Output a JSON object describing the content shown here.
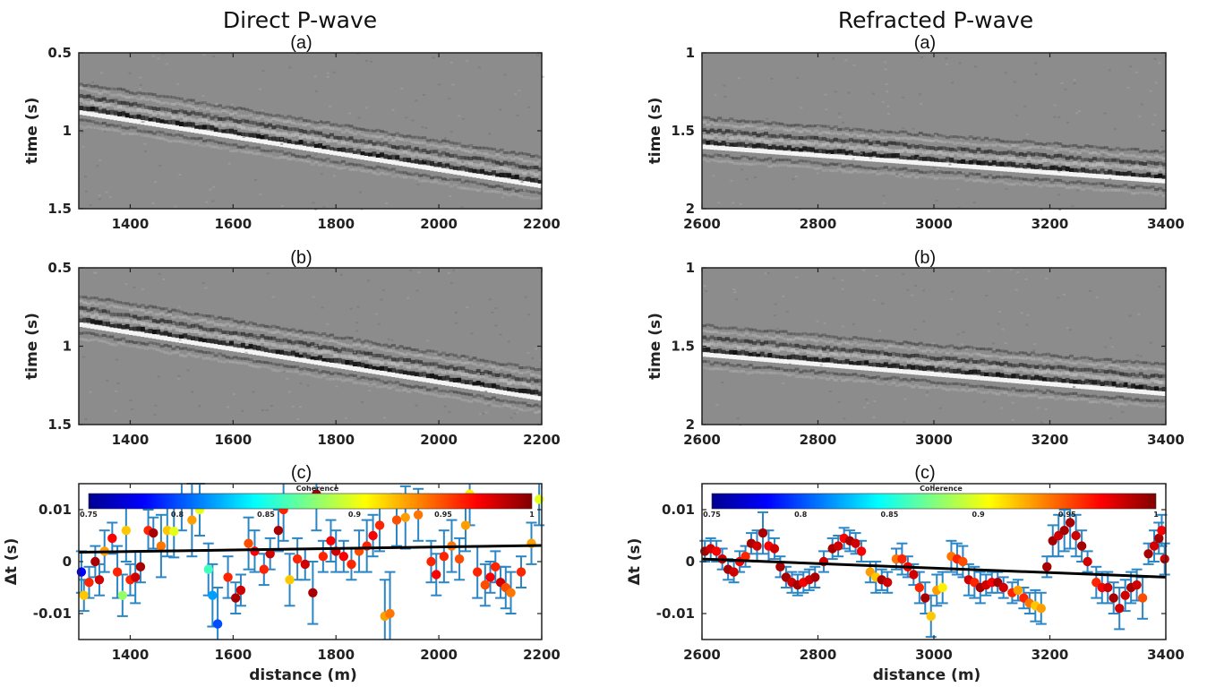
{
  "figure": {
    "left_title": "Direct P-wave",
    "right_title": "Refracted P-wave",
    "panel_labels": [
      "(a)",
      "(b)",
      "(c)"
    ]
  },
  "chart_data": [
    {
      "id": "direct_a",
      "type": "heatmap",
      "panel": "(a)",
      "ylabel": "time (s)",
      "xlim": [
        1300,
        2200
      ],
      "ylim": [
        1.5,
        0.5
      ],
      "y_inverted": true,
      "xticks": [
        "1400",
        "1600",
        "1800",
        "2000",
        "2200"
      ],
      "yticks": [
        "0.5",
        "1",
        "1.5"
      ],
      "colormap": "gray",
      "event": {
        "time_at_xmin": 0.88,
        "time_at_xmax": 1.35
      }
    },
    {
      "id": "direct_b",
      "type": "heatmap",
      "panel": "(b)",
      "ylabel": "time (s)",
      "xlim": [
        1300,
        2200
      ],
      "ylim": [
        1.5,
        0.5
      ],
      "y_inverted": true,
      "xticks": [
        "1400",
        "1600",
        "1800",
        "2000",
        "2200"
      ],
      "yticks": [
        "0.5",
        "1",
        "1.5"
      ],
      "colormap": "gray",
      "event": {
        "time_at_xmin": 0.86,
        "time_at_xmax": 1.33
      }
    },
    {
      "id": "direct_c",
      "type": "scatter",
      "panel": "(c)",
      "xlabel": "distance (m)",
      "ylabel": "Δt (s)",
      "xlim": [
        1300,
        2200
      ],
      "ylim": [
        -0.015,
        0.015
      ],
      "xticks": [
        "1400",
        "1600",
        "1800",
        "2000",
        "2200"
      ],
      "yticks": [
        "0.01",
        "0",
        "-0.01"
      ],
      "colorbar": {
        "title": "Coherence",
        "range": [
          0.75,
          1
        ],
        "ticks": [
          "0.75",
          "0.8",
          "0.85",
          "0.9",
          "0.95",
          "1"
        ],
        "colormap": "jet"
      },
      "trend_line": {
        "x": [
          1300,
          2200
        ],
        "y": [
          0.0018,
          0.0031
        ]
      },
      "points": [
        [
          1305,
          -0.002,
          0.78,
          0.004
        ],
        [
          1310,
          -0.0065,
          0.92,
          0.003
        ],
        [
          1320,
          -0.004,
          0.96,
          0.003
        ],
        [
          1332,
          0.0,
          0.99,
          0.003
        ],
        [
          1340,
          -0.0035,
          0.98,
          0.003
        ],
        [
          1350,
          0.002,
          0.93,
          0.004
        ],
        [
          1365,
          0.0045,
          0.97,
          0.003
        ],
        [
          1375,
          -0.002,
          0.96,
          0.005
        ],
        [
          1385,
          -0.0065,
          0.88,
          0.004
        ],
        [
          1392,
          0.006,
          0.92,
          0.006
        ],
        [
          1400,
          -0.0035,
          0.96,
          0.003
        ],
        [
          1410,
          -0.003,
          0.98,
          0.005
        ],
        [
          1420,
          -0.001,
          0.99,
          0.003
        ],
        [
          1435,
          0.006,
          0.96,
          0.004
        ],
        [
          1445,
          0.0055,
          0.99,
          0.003
        ],
        [
          1460,
          0.003,
          0.94,
          0.006
        ],
        [
          1472,
          0.006,
          0.92,
          0.005
        ],
        [
          1485,
          0.0058,
          0.9,
          0.005
        ],
        [
          1500,
          0.012,
          0.92,
          0.006
        ],
        [
          1520,
          0.008,
          0.93,
          0.007
        ],
        [
          1535,
          0.01,
          0.9,
          0.005
        ],
        [
          1552,
          -0.0015,
          0.86,
          0.005
        ],
        [
          1560,
          -0.0065,
          0.82,
          0.006
        ],
        [
          1570,
          -0.012,
          0.8,
          0.007
        ],
        [
          1590,
          -0.003,
          0.96,
          0.004
        ],
        [
          1605,
          -0.007,
          0.99,
          0.003
        ],
        [
          1615,
          -0.0055,
          0.98,
          0.003
        ],
        [
          1630,
          0.0035,
          0.95,
          0.005
        ],
        [
          1642,
          0.002,
          0.97,
          0.004
        ],
        [
          1660,
          -0.0015,
          0.96,
          0.003
        ],
        [
          1672,
          0.0015,
          0.98,
          0.003
        ],
        [
          1688,
          0.006,
          0.99,
          0.004
        ],
        [
          1698,
          0.01,
          0.96,
          0.006
        ],
        [
          1710,
          -0.0035,
          0.92,
          0.005
        ],
        [
          1725,
          0.0005,
          0.96,
          0.004
        ],
        [
          1740,
          -0.0005,
          0.98,
          0.003
        ],
        [
          1755,
          -0.006,
          0.99,
          0.006
        ],
        [
          1762,
          0.013,
          0.99,
          0.007
        ],
        [
          1775,
          0.001,
          0.96,
          0.003
        ],
        [
          1790,
          0.004,
          0.97,
          0.004
        ],
        [
          1800,
          0.002,
          0.98,
          0.004
        ],
        [
          1815,
          0.001,
          0.97,
          0.003
        ],
        [
          1830,
          -0.0005,
          0.96,
          0.003
        ],
        [
          1845,
          0.002,
          0.95,
          0.004
        ],
        [
          1860,
          0.003,
          0.96,
          0.005
        ],
        [
          1872,
          0.005,
          0.97,
          0.004
        ],
        [
          1885,
          0.007,
          0.96,
          0.005
        ],
        [
          1895,
          -0.0105,
          0.93,
          0.007
        ],
        [
          1905,
          -0.01,
          0.94,
          0.008
        ],
        [
          1918,
          0.008,
          0.95,
          0.005
        ],
        [
          1935,
          0.0085,
          0.93,
          0.006
        ],
        [
          1960,
          0.009,
          0.94,
          0.005
        ],
        [
          1985,
          0.0,
          0.96,
          0.004
        ],
        [
          1995,
          -0.0025,
          0.97,
          0.004
        ],
        [
          2010,
          0.001,
          0.96,
          0.005
        ],
        [
          2025,
          0.003,
          0.94,
          0.005
        ],
        [
          2040,
          0.0005,
          0.95,
          0.004
        ],
        [
          2052,
          0.007,
          0.93,
          0.005
        ],
        [
          2060,
          0.013,
          0.91,
          0.006
        ],
        [
          2075,
          -0.002,
          0.96,
          0.005
        ],
        [
          2090,
          -0.0045,
          0.95,
          0.004
        ],
        [
          2100,
          -0.003,
          0.97,
          0.003
        ],
        [
          2110,
          -0.001,
          0.96,
          0.003
        ],
        [
          2120,
          -0.004,
          0.98,
          0.003
        ],
        [
          2130,
          -0.005,
          0.95,
          0.004
        ],
        [
          2140,
          -0.006,
          0.94,
          0.004
        ],
        [
          2160,
          -0.002,
          0.96,
          0.003
        ],
        [
          2180,
          0.0035,
          0.93,
          0.004
        ],
        [
          2195,
          0.012,
          0.9,
          0.005
        ]
      ]
    },
    {
      "id": "refracted_a",
      "type": "heatmap",
      "panel": "(a)",
      "ylabel": "time (s)",
      "xlim": [
        2600,
        3400
      ],
      "ylim": [
        2,
        1
      ],
      "y_inverted": true,
      "xticks": [
        "2600",
        "2800",
        "3000",
        "3200",
        "3400"
      ],
      "yticks": [
        "1",
        "1.5",
        "2"
      ],
      "colormap": "gray",
      "event": {
        "time_at_xmin": 1.6,
        "time_at_xmax": 1.82
      }
    },
    {
      "id": "refracted_b",
      "type": "heatmap",
      "panel": "(b)",
      "ylabel": "time (s)",
      "xlim": [
        2600,
        3400
      ],
      "ylim": [
        2,
        1
      ],
      "y_inverted": true,
      "xticks": [
        "2600",
        "2800",
        "3000",
        "3200",
        "3400"
      ],
      "yticks": [
        "1",
        "1.5",
        "2"
      ],
      "colormap": "gray",
      "event": {
        "time_at_xmin": 1.55,
        "time_at_xmax": 1.8
      }
    },
    {
      "id": "refracted_c",
      "type": "scatter",
      "panel": "(c)",
      "xlabel": "distance (m)",
      "ylabel": "Δt (s)",
      "xlim": [
        2600,
        3400
      ],
      "ylim": [
        -0.015,
        0.015
      ],
      "xticks": [
        "2600",
        "2800",
        "3000",
        "3200",
        "3400"
      ],
      "yticks": [
        "0.01",
        "0",
        "-0.01"
      ],
      "colorbar": {
        "title": "Coherence",
        "range": [
          0.75,
          1
        ],
        "ticks": [
          "0.75",
          "0.8",
          "0.85",
          "0.9",
          "0.95",
          "1"
        ],
        "colormap": "jet"
      },
      "trend_line": {
        "x": [
          2600,
          3400
        ],
        "y": [
          0.0005,
          -0.003
        ]
      },
      "points": [
        [
          2605,
          0.002,
          0.99,
          0.002
        ],
        [
          2615,
          0.0025,
          0.98,
          0.002
        ],
        [
          2625,
          0.002,
          0.97,
          0.002
        ],
        [
          2635,
          0.0005,
          0.98,
          0.002
        ],
        [
          2645,
          -0.0015,
          0.99,
          0.002
        ],
        [
          2655,
          -0.002,
          0.98,
          0.002
        ],
        [
          2665,
          0.0,
          0.97,
          0.002
        ],
        [
          2675,
          0.001,
          0.96,
          0.002
        ],
        [
          2685,
          0.0035,
          0.99,
          0.002
        ],
        [
          2695,
          0.003,
          0.98,
          0.003
        ],
        [
          2705,
          0.0055,
          0.99,
          0.004
        ],
        [
          2715,
          0.003,
          0.97,
          0.003
        ],
        [
          2725,
          0.0025,
          0.98,
          0.002
        ],
        [
          2735,
          -0.001,
          0.99,
          0.002
        ],
        [
          2745,
          -0.003,
          0.99,
          0.002
        ],
        [
          2755,
          -0.004,
          0.98,
          0.002
        ],
        [
          2765,
          -0.0045,
          0.99,
          0.002
        ],
        [
          2775,
          -0.004,
          0.97,
          0.002
        ],
        [
          2785,
          -0.0035,
          0.98,
          0.002
        ],
        [
          2795,
          -0.003,
          0.99,
          0.002
        ],
        [
          2810,
          0.0,
          0.98,
          0.002
        ],
        [
          2825,
          0.0025,
          0.99,
          0.002
        ],
        [
          2835,
          0.003,
          0.98,
          0.002
        ],
        [
          2845,
          0.0045,
          0.97,
          0.002
        ],
        [
          2855,
          0.004,
          0.99,
          0.002
        ],
        [
          2865,
          0.0035,
          0.98,
          0.002
        ],
        [
          2875,
          0.002,
          0.97,
          0.002
        ],
        [
          2890,
          -0.002,
          0.93,
          0.002
        ],
        [
          2900,
          -0.003,
          0.92,
          0.003
        ],
        [
          2910,
          -0.0035,
          0.99,
          0.002
        ],
        [
          2920,
          -0.004,
          0.98,
          0.002
        ],
        [
          2935,
          0.0005,
          0.94,
          0.002
        ],
        [
          2945,
          0.0005,
          0.96,
          0.003
        ],
        [
          2955,
          -0.001,
          0.97,
          0.002
        ],
        [
          2965,
          -0.0025,
          0.98,
          0.002
        ],
        [
          2975,
          -0.005,
          0.96,
          0.003
        ],
        [
          2985,
          -0.007,
          0.99,
          0.003
        ],
        [
          2995,
          -0.0105,
          0.92,
          0.004
        ],
        [
          3005,
          -0.0055,
          0.93,
          0.003
        ],
        [
          3015,
          -0.005,
          0.91,
          0.003
        ],
        [
          3030,
          0.001,
          0.94,
          0.003
        ],
        [
          3040,
          0.0005,
          0.96,
          0.003
        ],
        [
          3050,
          0.0,
          0.95,
          0.003
        ],
        [
          3060,
          -0.0035,
          0.98,
          0.003
        ],
        [
          3070,
          -0.004,
          0.96,
          0.003
        ],
        [
          3080,
          -0.005,
          0.99,
          0.003
        ],
        [
          3090,
          -0.0045,
          0.98,
          0.002
        ],
        [
          3100,
          -0.004,
          0.97,
          0.002
        ],
        [
          3110,
          -0.004,
          0.99,
          0.002
        ],
        [
          3120,
          -0.005,
          0.98,
          0.002
        ],
        [
          3135,
          -0.006,
          0.96,
          0.002
        ],
        [
          3145,
          -0.0055,
          0.93,
          0.002
        ],
        [
          3155,
          -0.007,
          0.96,
          0.002
        ],
        [
          3165,
          -0.008,
          0.94,
          0.002
        ],
        [
          3175,
          -0.0085,
          0.92,
          0.003
        ],
        [
          3185,
          -0.009,
          0.93,
          0.003
        ],
        [
          3195,
          -0.001,
          0.99,
          0.002
        ],
        [
          3205,
          0.004,
          0.99,
          0.003
        ],
        [
          3215,
          0.005,
          0.98,
          0.004
        ],
        [
          3225,
          0.006,
          0.99,
          0.004
        ],
        [
          3235,
          0.0075,
          0.99,
          0.005
        ],
        [
          3245,
          0.005,
          0.98,
          0.004
        ],
        [
          3255,
          0.003,
          0.99,
          0.003
        ],
        [
          3265,
          0.0,
          0.98,
          0.002
        ],
        [
          3280,
          -0.004,
          0.96,
          0.003
        ],
        [
          3290,
          -0.005,
          0.97,
          0.003
        ],
        [
          3300,
          -0.005,
          0.98,
          0.003
        ],
        [
          3310,
          -0.007,
          0.99,
          0.003
        ],
        [
          3320,
          -0.009,
          0.98,
          0.004
        ],
        [
          3330,
          -0.0065,
          0.98,
          0.003
        ],
        [
          3340,
          -0.005,
          0.99,
          0.003
        ],
        [
          3350,
          -0.0045,
          0.98,
          0.003
        ],
        [
          3360,
          -0.007,
          0.95,
          0.004
        ],
        [
          3370,
          0.0015,
          0.99,
          0.002
        ],
        [
          3380,
          0.003,
          0.98,
          0.003
        ],
        [
          3388,
          0.0045,
          0.99,
          0.003
        ],
        [
          3393,
          0.006,
          0.97,
          0.003
        ],
        [
          3398,
          0.0005,
          0.98,
          0.003
        ]
      ]
    }
  ]
}
